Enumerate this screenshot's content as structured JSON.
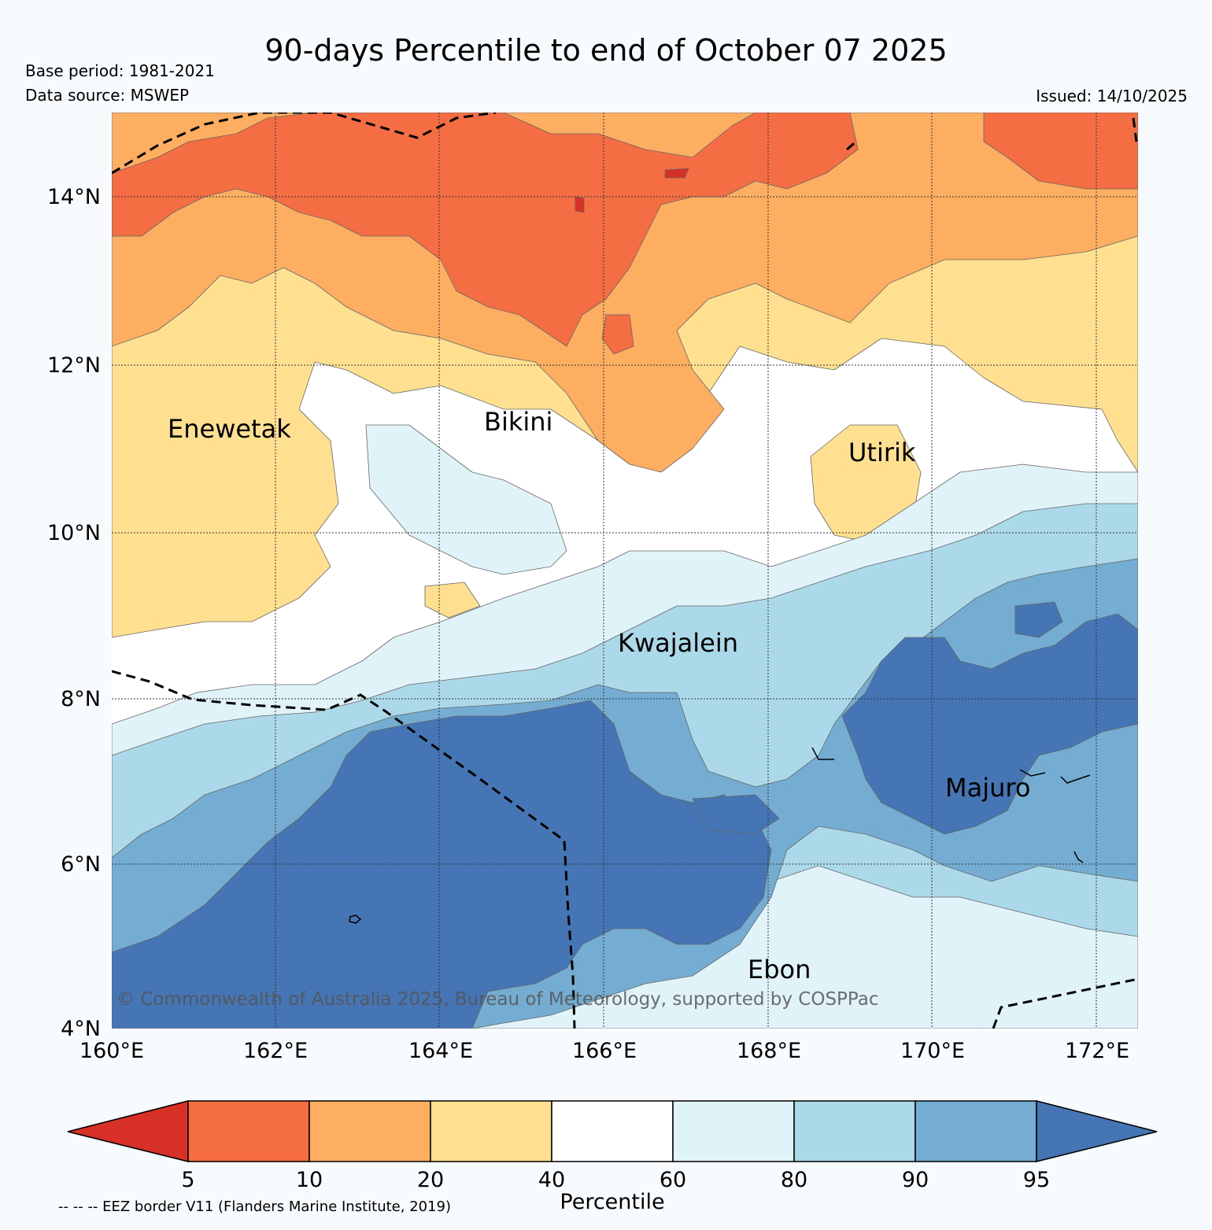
{
  "header": {
    "title": "90-days Percentile to end of October 07 2025",
    "base_period": "Base period: 1981-2021",
    "data_source": "Data source: MSWEP",
    "issued": "Issued: 14/10/2025"
  },
  "map": {
    "lat_labels": [
      "14°N",
      "12°N",
      "10°N",
      "8°N",
      "6°N",
      "4°N"
    ],
    "lon_labels": [
      "160°E",
      "162°E",
      "164°E",
      "166°E",
      "168°E",
      "170°E",
      "172°E"
    ],
    "places": {
      "enewetak": "Enewetak",
      "bikini": "Bikini",
      "utirik": "Utirik",
      "kwajalein": "Kwajalein",
      "majuro": "Majuro",
      "ebon": "Ebon"
    },
    "copyright": "© Commonwealth of Australia 2025, Bureau of Meteorology, supported by COSPPac"
  },
  "legend": {
    "label": "Percentile",
    "ticks": [
      "5",
      "10",
      "20",
      "40",
      "60",
      "80",
      "90",
      "95"
    ],
    "colors": {
      "below5": "#d73027",
      "p5_10": "#f46d43",
      "p10_20": "#fdae61",
      "p20_40": "#fee090",
      "p40_60": "#ffffff",
      "p60_80": "#e0f3f8",
      "p80_90": "#abd9e9",
      "p90_95": "#74add1",
      "above95": "#4575b4"
    },
    "eez_note": "-- -- -- EEZ border V11 (Flanders Marine Institute, 2019)"
  }
}
